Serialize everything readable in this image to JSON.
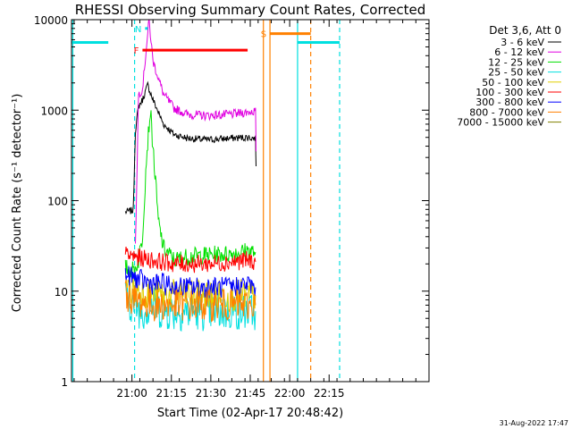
{
  "chart_data": {
    "type": "line",
    "title": "RHESSI Observing Summary Count Rates, Corrected",
    "xlabel": "Start Time (02-Apr-17 20:48:42)",
    "ylabel": "Corrected Count Rate (s⁻¹ detector⁻¹)",
    "y_scale": "log",
    "ylim": [
      1,
      10000
    ],
    "xlim_min": [
      -11,
      125
    ],
    "x_ticks": [
      {
        "min": 12,
        "label": "21:00"
      },
      {
        "min": 27,
        "label": "21:15"
      },
      {
        "min": 42,
        "label": "21:30"
      },
      {
        "min": 57,
        "label": "21:45"
      },
      {
        "min": 72,
        "label": "22:00"
      },
      {
        "min": 87,
        "label": "22:15"
      }
    ],
    "y_ticks": [
      {
        "v": 1,
        "label": "1"
      },
      {
        "v": 10,
        "label": "10"
      },
      {
        "v": 100,
        "label": "100"
      },
      {
        "v": 1000,
        "label": "1000"
      },
      {
        "v": 10000,
        "label": "10000"
      }
    ],
    "legend_header": "Det 3,6, Att 0",
    "legend_position": "right",
    "series": [
      {
        "name": "3 - 6 keV",
        "color": "#000000",
        "x": [
          9.5,
          12.5,
          13.3,
          14.5,
          16,
          18,
          20,
          24,
          28,
          33,
          40,
          50,
          56,
          59,
          59.2
        ],
        "y": [
          75,
          78,
          600,
          1100,
          1300,
          1900,
          1300,
          700,
          540,
          490,
          470,
          490,
          500,
          490,
          240
        ]
      },
      {
        "name": "6 - 12 keV",
        "color": "#e000e0",
        "x": [
          13.3,
          14.5,
          16,
          17.5,
          18.5,
          20,
          24,
          28,
          33,
          40,
          50,
          56,
          59,
          59.2
        ],
        "y": [
          30,
          1500,
          1700,
          5000,
          9800,
          3500,
          1500,
          1050,
          900,
          870,
          900,
          950,
          980,
          350
        ]
      },
      {
        "name": "12 - 25 keV",
        "color": "#00e000",
        "x": [
          9.5,
          13,
          14.5,
          16,
          17.5,
          19,
          20.5,
          22,
          24,
          28,
          33,
          40,
          50,
          56,
          59
        ],
        "y": [
          18,
          17,
          22,
          40,
          300,
          1000,
          250,
          60,
          30,
          22,
          24,
          25,
          26,
          28,
          27
        ]
      },
      {
        "name": "25 - 50 keV",
        "color": "#00e0e0",
        "x": [
          9.5,
          13,
          16,
          20,
          24,
          28,
          33,
          40,
          50,
          56,
          59
        ],
        "y": [
          8,
          7,
          6,
          7,
          6,
          6,
          6,
          6,
          6,
          6,
          6
        ]
      },
      {
        "name": "50 - 100 keV",
        "color": "#e0d000",
        "x": [
          9.5,
          13,
          16,
          20,
          24,
          28,
          33,
          40,
          50,
          56,
          59
        ],
        "y": [
          11,
          10,
          10,
          9,
          9,
          9,
          9,
          9,
          9,
          9,
          9
        ]
      },
      {
        "name": "100 - 300 keV",
        "color": "#ff0000",
        "x": [
          9.5,
          13,
          16,
          20,
          24,
          28,
          33,
          40,
          50,
          56,
          59
        ],
        "y": [
          25,
          24,
          23,
          22,
          21,
          20,
          20,
          20,
          21,
          22,
          21
        ]
      },
      {
        "name": "300 - 800 keV",
        "color": "#0000ff",
        "x": [
          9.5,
          13,
          16,
          20,
          24,
          28,
          33,
          40,
          50,
          56,
          59
        ],
        "y": [
          15,
          14,
          13,
          12,
          12,
          11,
          11,
          11,
          11,
          12,
          11
        ]
      },
      {
        "name": "800 - 7000 keV",
        "color": "#ff8000",
        "x": [
          9.5,
          13,
          16,
          20,
          24,
          28,
          33,
          40,
          50,
          56,
          59
        ],
        "y": [
          9,
          8,
          7.5,
          7,
          7,
          7,
          7,
          7,
          7,
          7,
          7
        ]
      },
      {
        "name": "7000 - 15000 keV",
        "color": "#808000",
        "x": [],
        "y": []
      }
    ],
    "flag_bars": [
      {
        "label": "",
        "color": "#00e0e0",
        "x0": -11,
        "x1": 3,
        "v": 5600
      },
      {
        "label": "N",
        "color": "#00e0e0",
        "x0": 17,
        "x1": 18,
        "v": 8000
      },
      {
        "label": "F",
        "color": "#ff0000",
        "x0": 16,
        "x1": 56,
        "v": 4600
      },
      {
        "label": "S",
        "color": "#ff8000",
        "x0": 64.5,
        "x1": 80,
        "v": 7000
      },
      {
        "label": "",
        "color": "#00e0e0",
        "x0": 75,
        "x1": 91,
        "v": 5600
      }
    ],
    "vlines": [
      {
        "x": -10.5,
        "color": "#00e0e0",
        "dash": false
      },
      {
        "x": 13,
        "color": "#00e0e0",
        "dash": true
      },
      {
        "x": 62,
        "color": "#ff8000",
        "dash": false
      },
      {
        "x": 64.5,
        "color": "#ff8000",
        "dash": false
      },
      {
        "x": 75,
        "color": "#00e0e0",
        "dash": false
      },
      {
        "x": 80,
        "color": "#ff8000",
        "dash": true
      },
      {
        "x": 91,
        "color": "#00e0e0",
        "dash": true
      }
    ],
    "timestamp": "31-Aug-2022 17:47"
  }
}
